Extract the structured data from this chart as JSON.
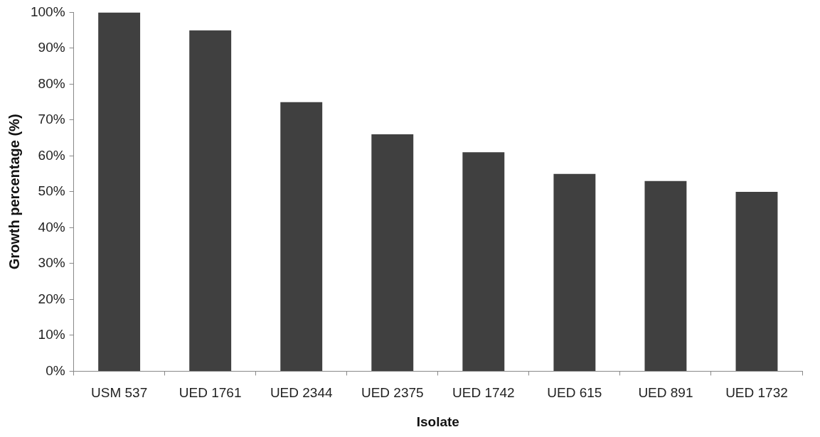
{
  "chart_data": {
    "type": "bar",
    "xlabel": "Isolate",
    "ylabel": "Growth percentage (%)",
    "categories": [
      "USM 537",
      "UED 1761",
      "UED 2344",
      "UED 2375",
      "UED 1742",
      "UED 615",
      "UED 891",
      "UED 1732"
    ],
    "values": [
      100,
      95,
      75,
      66,
      61,
      55,
      53,
      50
    ],
    "color": "#404040",
    "ylim": [
      0,
      100
    ],
    "yticks": [
      {
        "value": 0,
        "label": "0%"
      },
      {
        "value": 10,
        "label": "10%"
      },
      {
        "value": 20,
        "label": "20%"
      },
      {
        "value": 30,
        "label": "30%"
      },
      {
        "value": 40,
        "label": "40%"
      },
      {
        "value": 50,
        "label": "50%"
      },
      {
        "value": 60,
        "label": "60%"
      },
      {
        "value": 70,
        "label": "70%"
      },
      {
        "value": 80,
        "label": "80%"
      },
      {
        "value": 90,
        "label": "90%"
      },
      {
        "value": 100,
        "label": "100%"
      }
    ],
    "grid": false,
    "legend": false
  }
}
